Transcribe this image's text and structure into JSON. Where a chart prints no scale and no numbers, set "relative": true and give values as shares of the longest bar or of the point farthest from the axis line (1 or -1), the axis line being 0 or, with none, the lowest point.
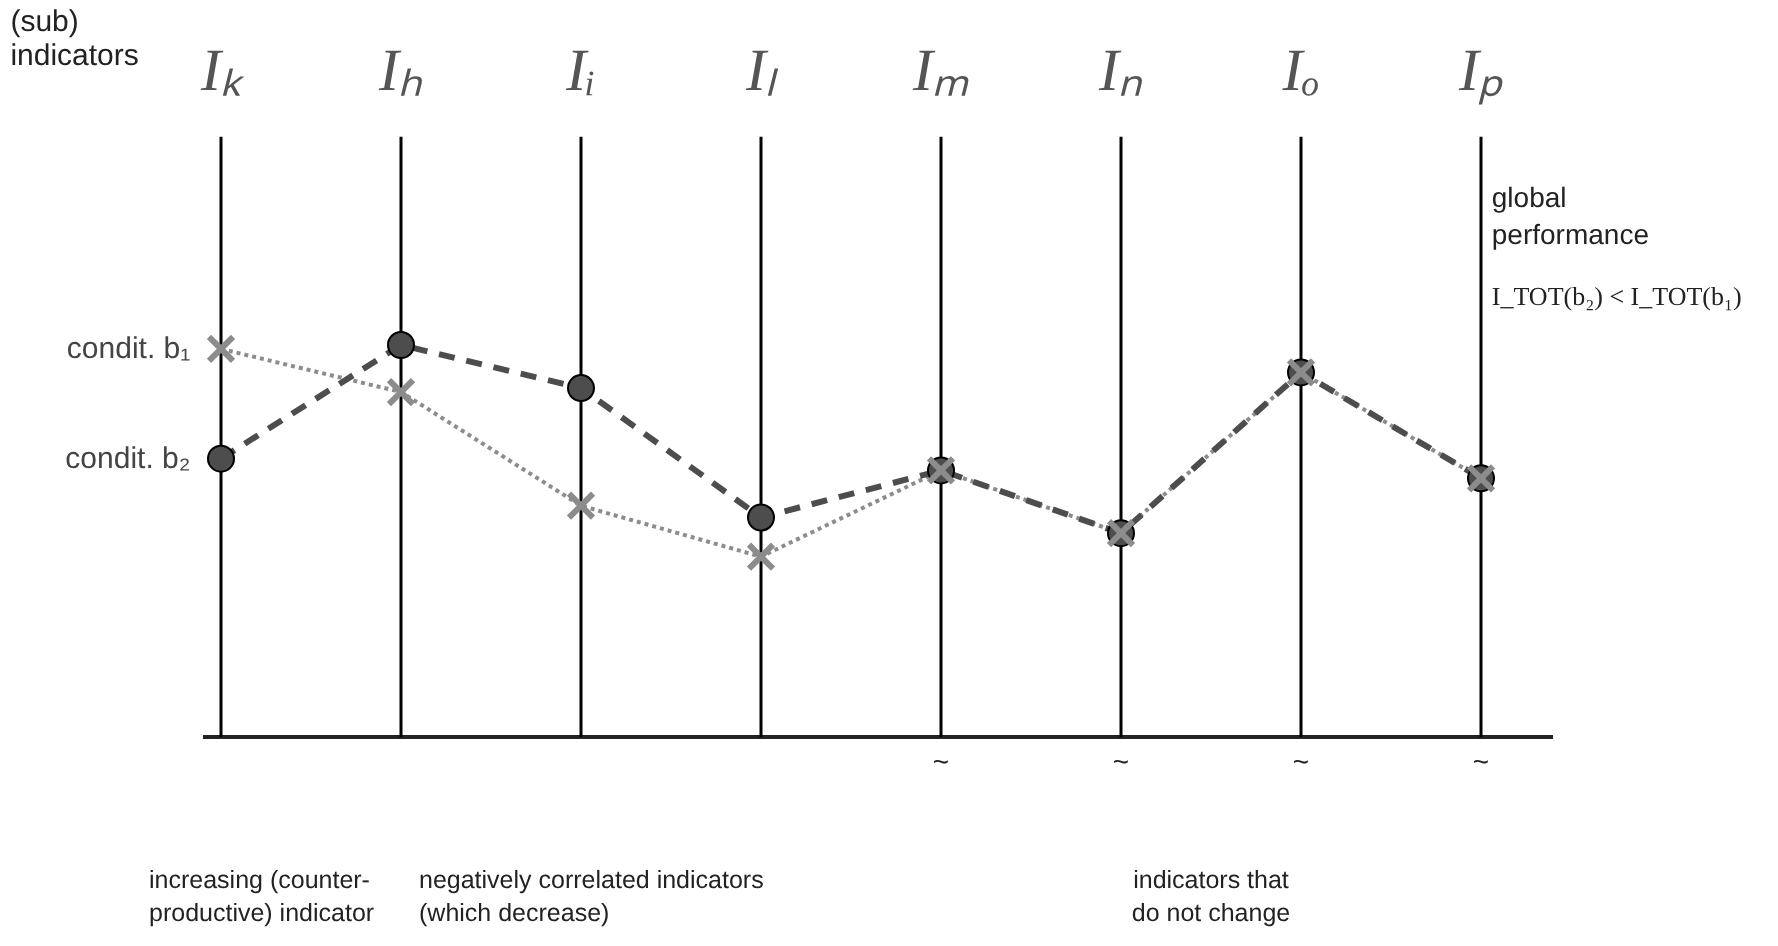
{
  "chart_data": {
    "type": "line",
    "relative": true,
    "xlabel": "(sub)\nindicators",
    "categories": [
      "Iₖ",
      "Iₕ",
      "Iᵢ",
      "Iₗ",
      "Iₘ",
      "Iₙ",
      "Iₒ",
      "Iₚ"
    ],
    "series": [
      {
        "name": "condit. b₁",
        "color": "#8c8c8c",
        "marker": "cross",
        "line_style": "dotted",
        "values": [
          0.99,
          0.88,
          0.59,
          0.46,
          0.68,
          0.52,
          0.93,
          0.66
        ]
      },
      {
        "name": "condit. b₂",
        "color": "#4d4d4d",
        "marker": "circle",
        "line_style": "dashed",
        "values": [
          0.71,
          1.0,
          0.89,
          0.56,
          0.68,
          0.52,
          0.93,
          0.66
        ]
      }
    ],
    "grid": "x",
    "legend": false,
    "annotations": [
      "global\nperformance",
      "I_TOT(b₂) < I_TOT(b₁)",
      "increasing (counter-\nproductive) indicator",
      "negatively correlated indicators\n(which decrease)",
      "indicators that\ndo not change",
      "~",
      "~",
      "~",
      "~"
    ]
  }
}
